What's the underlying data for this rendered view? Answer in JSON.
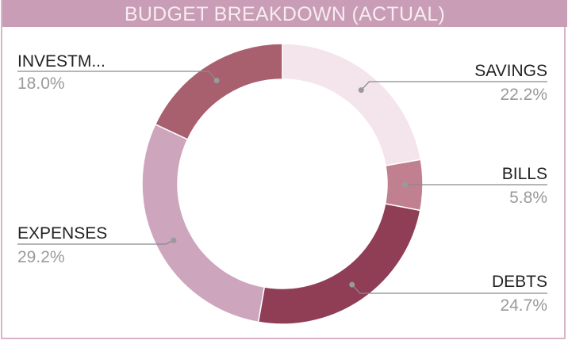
{
  "chart_data": {
    "type": "pie",
    "title": "BUDGET BREAKDOWN  (ACTUAL)",
    "donut": true,
    "categories": [
      "SAVINGS",
      "BILLS",
      "DEBTS",
      "EXPENSES",
      "INVESTM..."
    ],
    "values": [
      22.2,
      5.8,
      24.7,
      29.2,
      18.0
    ],
    "value_labels": [
      "22.2%",
      "5.8%",
      "24.7%",
      "29.2%",
      "18.0%"
    ],
    "colors": [
      "#f4e4ec",
      "#c0808f",
      "#8f3e55",
      "#cda5bd",
      "#a8606f"
    ],
    "legend": "none",
    "grid": false
  }
}
